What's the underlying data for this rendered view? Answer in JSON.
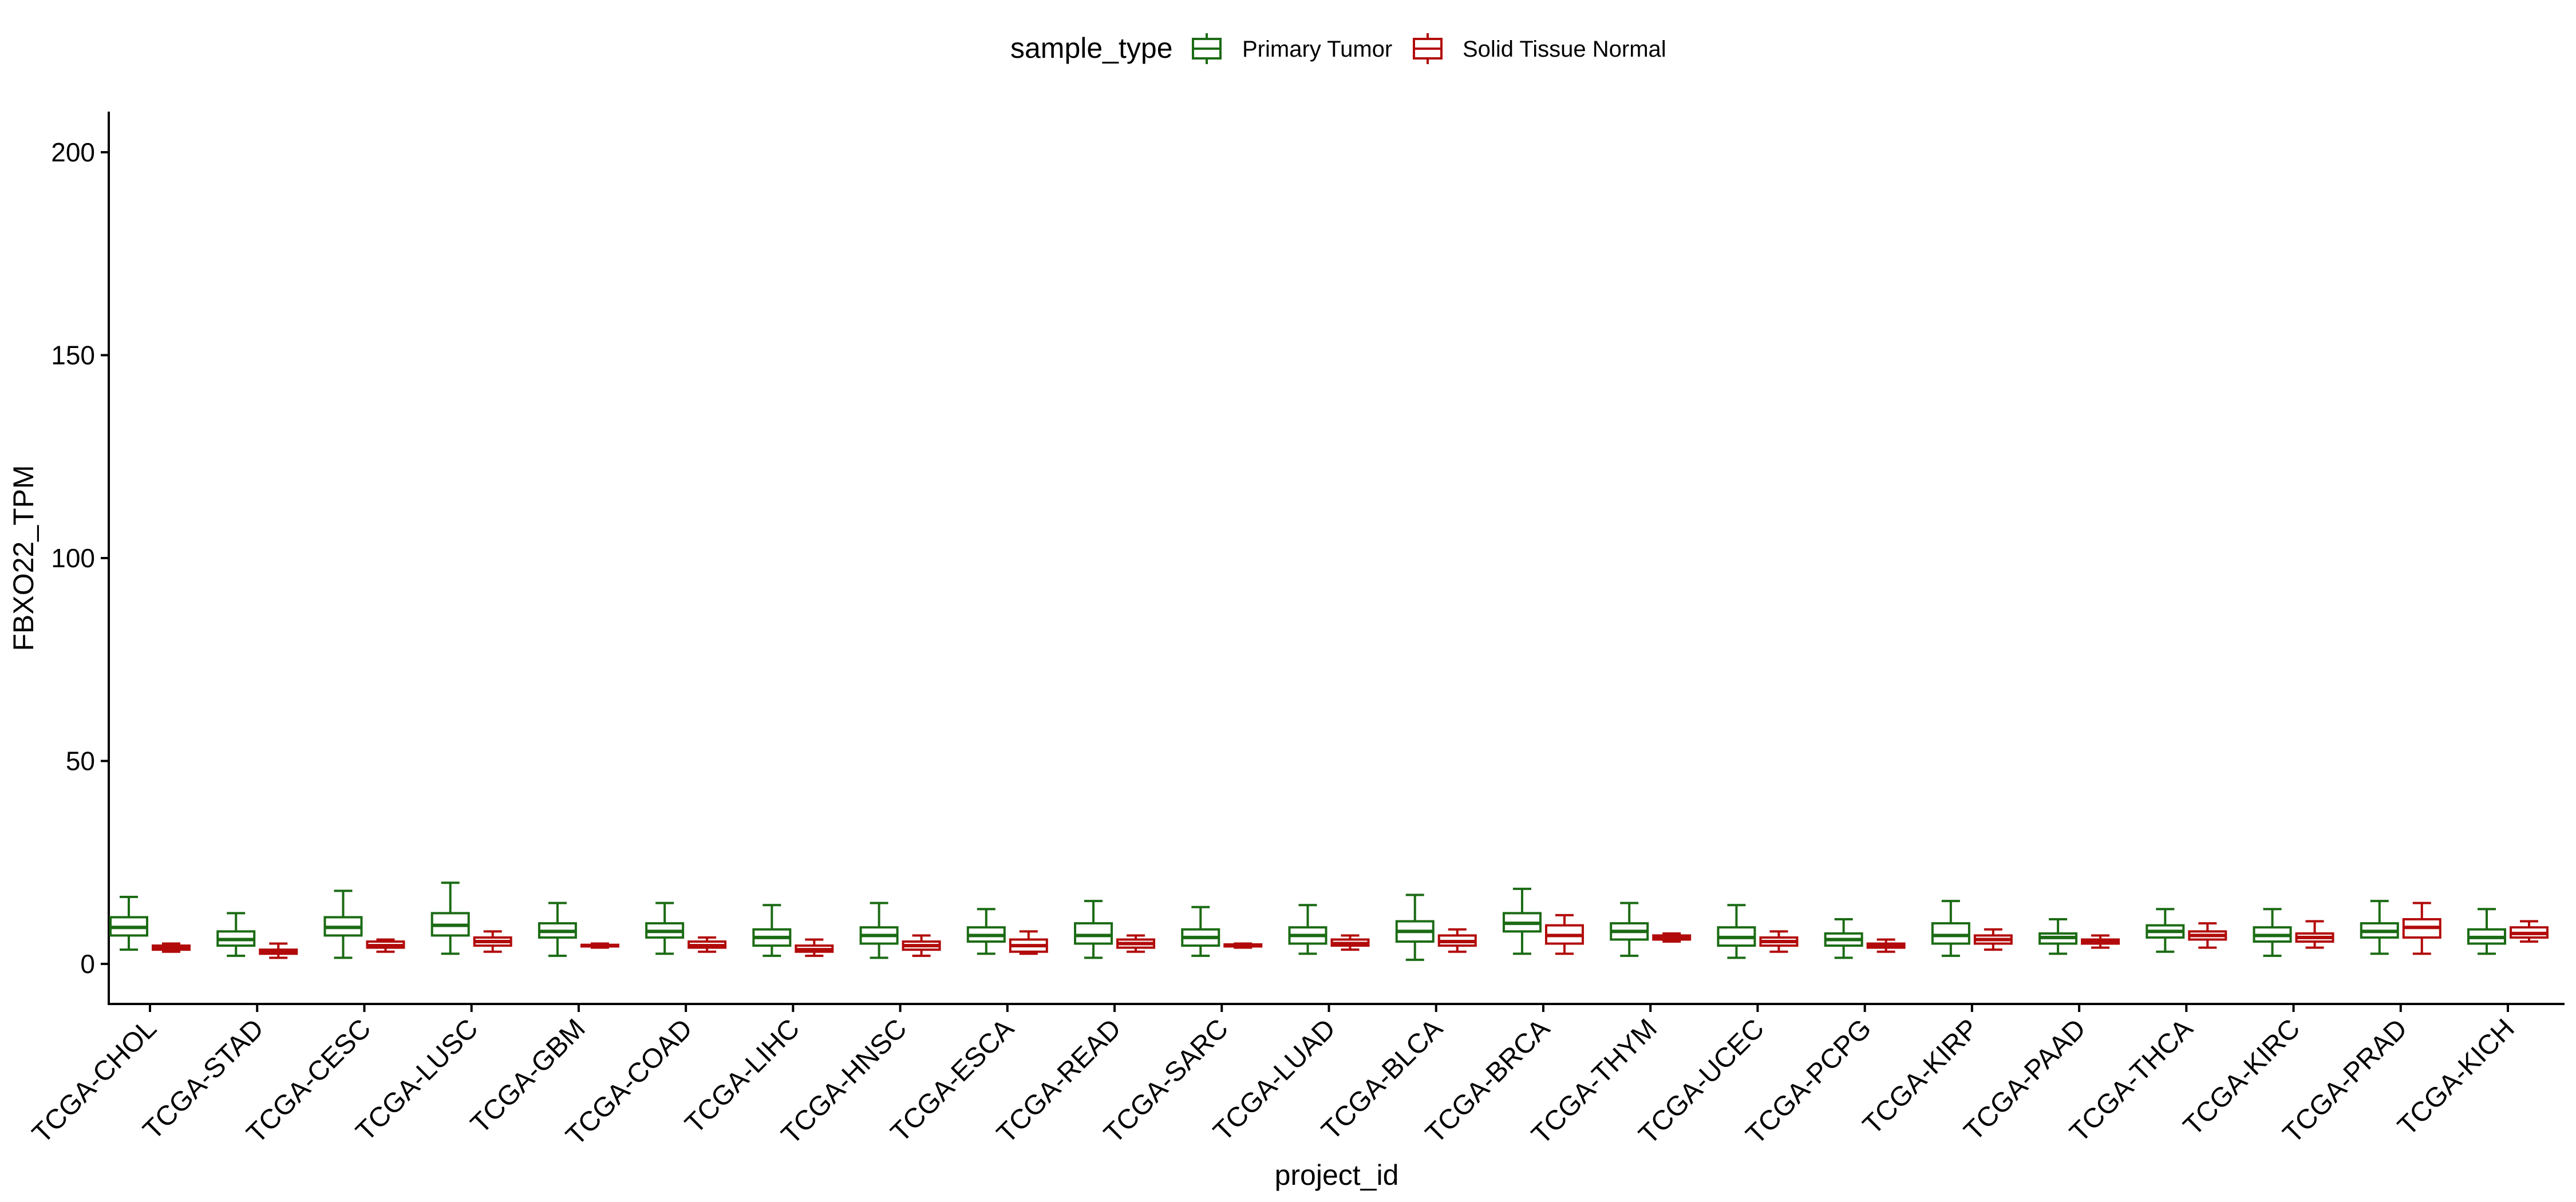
{
  "chart_data": {
    "type": "boxplot",
    "xlabel": "project_id",
    "ylabel": "FBXO22_TPM",
    "ylim": [
      -10,
      210
    ],
    "yticks": [
      0,
      50,
      100,
      150,
      200
    ],
    "grid": false,
    "legend": {
      "title": "sample_type",
      "position": "top",
      "entries": [
        {
          "name": "Primary Tumor",
          "color": "#1b6b14"
        },
        {
          "name": "Solid Tissue Normal",
          "color": "#b20a0a"
        }
      ]
    },
    "categories": [
      "TCGA-CHOL",
      "TCGA-STAD",
      "TCGA-CESC",
      "TCGA-LUSC",
      "TCGA-GBM",
      "TCGA-COAD",
      "TCGA-LIHC",
      "TCGA-HNSC",
      "TCGA-ESCA",
      "TCGA-READ",
      "TCGA-SARC",
      "TCGA-LUAD",
      "TCGA-BLCA",
      "TCGA-BRCA",
      "TCGA-THYM",
      "TCGA-UCEC",
      "TCGA-PCPG",
      "TCGA-KIRP",
      "TCGA-PAAD",
      "TCGA-THCA",
      "TCGA-KIRC",
      "TCGA-PRAD",
      "TCGA-KICH"
    ],
    "series": [
      {
        "name": "Primary Tumor",
        "color": "#1b6b14",
        "boxes": [
          {
            "min": 3.5,
            "q1": 7,
            "median": 9,
            "q3": 11.5,
            "max": 16.5
          },
          {
            "min": 2,
            "q1": 4.5,
            "median": 6,
            "q3": 8,
            "max": 12.5
          },
          {
            "min": 1.5,
            "q1": 7,
            "median": 9,
            "q3": 11.5,
            "max": 18
          },
          {
            "min": 2.5,
            "q1": 7,
            "median": 9.5,
            "q3": 12.5,
            "max": 20
          },
          {
            "min": 2,
            "q1": 6.5,
            "median": 8,
            "q3": 10,
            "max": 15
          },
          {
            "min": 2.5,
            "q1": 6.5,
            "median": 8,
            "q3": 10,
            "max": 15
          },
          {
            "min": 2,
            "q1": 4.5,
            "median": 6.5,
            "q3": 8.5,
            "max": 14.5
          },
          {
            "min": 1.5,
            "q1": 5,
            "median": 7,
            "q3": 9,
            "max": 15
          },
          {
            "min": 2.5,
            "q1": 5.5,
            "median": 7,
            "q3": 9,
            "max": 13.5
          },
          {
            "min": 1.5,
            "q1": 5,
            "median": 7,
            "q3": 10,
            "max": 15.5
          },
          {
            "min": 2,
            "q1": 4.5,
            "median": 6.5,
            "q3": 8.5,
            "max": 14
          },
          {
            "min": 2.5,
            "q1": 5,
            "median": 7,
            "q3": 9,
            "max": 14.5
          },
          {
            "min": 1,
            "q1": 5.5,
            "median": 8,
            "q3": 10.5,
            "max": 17
          },
          {
            "min": 2.5,
            "q1": 8,
            "median": 10,
            "q3": 12.5,
            "max": 18.5
          },
          {
            "min": 2,
            "q1": 6,
            "median": 8,
            "q3": 10,
            "max": 15
          },
          {
            "min": 1.5,
            "q1": 4.5,
            "median": 6.5,
            "q3": 9,
            "max": 14.5
          },
          {
            "min": 1.5,
            "q1": 4.5,
            "median": 6,
            "q3": 7.5,
            "max": 11
          },
          {
            "min": 2,
            "q1": 5,
            "median": 7,
            "q3": 10,
            "max": 15.5
          },
          {
            "min": 2.5,
            "q1": 5,
            "median": 6.5,
            "q3": 7.5,
            "max": 11
          },
          {
            "min": 3,
            "q1": 6.5,
            "median": 8,
            "q3": 9.5,
            "max": 13.5
          },
          {
            "min": 2,
            "q1": 5.5,
            "median": 7,
            "q3": 9,
            "max": 13.5
          },
          {
            "min": 2.5,
            "q1": 6.5,
            "median": 8,
            "q3": 10,
            "max": 15.5
          },
          {
            "min": 2.5,
            "q1": 5,
            "median": 6.5,
            "q3": 8.5,
            "max": 13.5
          }
        ]
      },
      {
        "name": "Solid Tissue Normal",
        "color": "#b20a0a",
        "boxes": [
          {
            "min": 3,
            "q1": 3.5,
            "median": 4,
            "q3": 4.5,
            "max": 5
          },
          {
            "min": 1.5,
            "q1": 2.5,
            "median": 3,
            "q3": 3.5,
            "max": 5
          },
          {
            "min": 3,
            "q1": 4,
            "median": 4.5,
            "q3": 5.5,
            "max": 6
          },
          {
            "min": 3,
            "q1": 4.5,
            "median": 5.5,
            "q3": 6.5,
            "max": 8
          },
          {
            "min": 4,
            "q1": 4.3,
            "median": 4.5,
            "q3": 4.7,
            "max": 5
          },
          {
            "min": 3,
            "q1": 4,
            "median": 4.5,
            "q3": 5.5,
            "max": 6.5
          },
          {
            "min": 2,
            "q1": 3,
            "median": 3.5,
            "q3": 4.5,
            "max": 6
          },
          {
            "min": 2,
            "q1": 3.5,
            "median": 4.5,
            "q3": 5.5,
            "max": 7
          },
          {
            "min": 2.5,
            "q1": 3,
            "median": 4.5,
            "q3": 6,
            "max": 8
          },
          {
            "min": 3,
            "q1": 4,
            "median": 5,
            "q3": 6,
            "max": 7
          },
          {
            "min": 4,
            "q1": 4.3,
            "median": 4.5,
            "q3": 4.8,
            "max": 5
          },
          {
            "min": 3.5,
            "q1": 4.5,
            "median": 5,
            "q3": 6,
            "max": 7
          },
          {
            "min": 3,
            "q1": 4.5,
            "median": 5.5,
            "q3": 7,
            "max": 8.5
          },
          {
            "min": 2.5,
            "q1": 5,
            "median": 7,
            "q3": 9.5,
            "max": 12
          },
          {
            "min": 5.5,
            "q1": 6,
            "median": 6.5,
            "q3": 7,
            "max": 7.5
          },
          {
            "min": 3,
            "q1": 4.5,
            "median": 5.5,
            "q3": 6.5,
            "max": 8
          },
          {
            "min": 3,
            "q1": 4,
            "median": 4.5,
            "q3": 5,
            "max": 6
          },
          {
            "min": 3.5,
            "q1": 5,
            "median": 6,
            "q3": 7,
            "max": 8.5
          },
          {
            "min": 4,
            "q1": 5,
            "median": 5.5,
            "q3": 6,
            "max": 7
          },
          {
            "min": 4,
            "q1": 6,
            "median": 7,
            "q3": 8,
            "max": 10
          },
          {
            "min": 4,
            "q1": 5.5,
            "median": 6.5,
            "q3": 7.5,
            "max": 10.5
          },
          {
            "min": 2.5,
            "q1": 6.5,
            "median": 9,
            "q3": 11,
            "max": 15
          },
          {
            "min": 5.5,
            "q1": 6.5,
            "median": 7.5,
            "q3": 9,
            "max": 10.5
          }
        ]
      }
    ]
  }
}
